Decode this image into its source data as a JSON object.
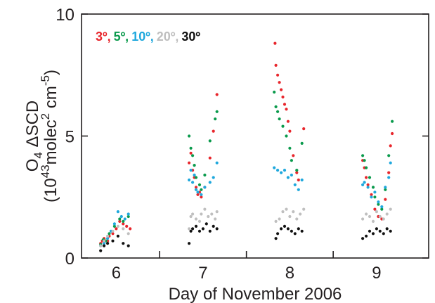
{
  "chart_data": {
    "type": "scatter",
    "title": "",
    "xlabel": "Day of November 2006",
    "ylabel_main": "O",
    "ylabel_sub": "4",
    "ylabel_rest": " ΔSCD",
    "ylabel_units": {
      "open": "(10",
      "exp": "43",
      "molec": "molec",
      "molec_exp": "2",
      "cm": " cm",
      "cm_exp": "-5",
      "close": ")"
    },
    "xlim": [
      5.6,
      9.6
    ],
    "ylim": [
      0,
      10
    ],
    "x_ticks": [
      6,
      7,
      8,
      9
    ],
    "y_ticks": [
      0,
      5,
      10
    ],
    "grid": false,
    "legend_position": "top-left",
    "legend": [
      {
        "label": "3º,",
        "color": "#e8262c"
      },
      {
        "label": "5º,",
        "color": "#0a9a4c"
      },
      {
        "label": "10º,",
        "color": "#1fa8dd"
      },
      {
        "label": "20º,",
        "color": "#bfbfbf"
      },
      {
        "label": "30º",
        "color": "#111111"
      }
    ],
    "series": [
      {
        "color": "#e8262c",
        "points": [
          [
            5.82,
            0.6
          ],
          [
            5.84,
            0.7
          ],
          [
            5.86,
            0.8
          ],
          [
            5.9,
            0.7
          ],
          [
            5.92,
            0.9
          ],
          [
            5.96,
            1.0
          ],
          [
            6.0,
            1.2
          ],
          [
            6.04,
            1.5
          ],
          [
            6.08,
            1.4
          ],
          [
            6.12,
            1.3
          ],
          [
            6.16,
            1.2
          ],
          [
            6.84,
            3.9
          ],
          [
            6.86,
            4.3
          ],
          [
            6.88,
            3.6
          ],
          [
            6.9,
            3.3
          ],
          [
            6.92,
            2.9
          ],
          [
            6.94,
            2.6
          ],
          [
            6.96,
            2.7
          ],
          [
            6.98,
            2.5
          ],
          [
            7.02,
            2.9
          ],
          [
            7.08,
            4.1
          ],
          [
            7.12,
            5.2
          ],
          [
            7.16,
            6.7
          ],
          [
            7.83,
            8.8
          ],
          [
            7.84,
            7.9
          ],
          [
            7.86,
            7.5
          ],
          [
            7.88,
            7.2
          ],
          [
            7.9,
            6.9
          ],
          [
            7.92,
            6.6
          ],
          [
            7.94,
            6.3
          ],
          [
            7.96,
            6.1
          ],
          [
            7.98,
            5.6
          ],
          [
            8.0,
            5.2
          ],
          [
            8.04,
            4.2
          ],
          [
            8.08,
            3.5
          ],
          [
            8.1,
            3.2
          ],
          [
            8.16,
            5.3
          ],
          [
            8.84,
            4.0
          ],
          [
            8.86,
            3.7
          ],
          [
            8.88,
            3.3
          ],
          [
            8.9,
            3.0
          ],
          [
            8.94,
            2.6
          ],
          [
            8.98,
            2.0
          ],
          [
            9.02,
            1.7
          ],
          [
            9.06,
            1.6
          ],
          [
            9.1,
            2.4
          ],
          [
            9.14,
            3.5
          ],
          [
            9.16,
            4.6
          ],
          [
            9.18,
            5.1
          ]
        ]
      },
      {
        "color": "#0a9a4c",
        "points": [
          [
            5.82,
            0.55
          ],
          [
            5.85,
            0.75
          ],
          [
            5.88,
            0.7
          ],
          [
            5.92,
            1.0
          ],
          [
            5.98,
            1.3
          ],
          [
            6.04,
            1.6
          ],
          [
            6.08,
            1.5
          ],
          [
            6.14,
            1.7
          ],
          [
            6.84,
            5.0
          ],
          [
            6.86,
            4.5
          ],
          [
            6.88,
            4.2
          ],
          [
            6.9,
            3.8
          ],
          [
            6.92,
            3.3
          ],
          [
            6.96,
            3.0
          ],
          [
            6.98,
            2.8
          ],
          [
            7.02,
            3.4
          ],
          [
            7.08,
            4.8
          ],
          [
            7.14,
            5.7
          ],
          [
            7.16,
            6.0
          ],
          [
            7.82,
            6.8
          ],
          [
            7.84,
            6.2
          ],
          [
            7.86,
            6.0
          ],
          [
            7.88,
            5.7
          ],
          [
            7.92,
            5.4
          ],
          [
            7.96,
            5.0
          ],
          [
            8.0,
            4.5
          ],
          [
            8.02,
            4.0
          ],
          [
            8.08,
            3.6
          ],
          [
            8.14,
            4.7
          ],
          [
            8.84,
            4.2
          ],
          [
            8.86,
            4.0
          ],
          [
            8.88,
            3.7
          ],
          [
            8.92,
            3.3
          ],
          [
            8.96,
            2.9
          ],
          [
            8.98,
            2.5
          ],
          [
            9.02,
            2.2
          ],
          [
            9.06,
            2.0
          ],
          [
            9.1,
            2.8
          ],
          [
            9.14,
            4.2
          ],
          [
            9.18,
            5.6
          ]
        ]
      },
      {
        "color": "#1fa8dd",
        "points": [
          [
            5.82,
            0.5
          ],
          [
            5.86,
            0.6
          ],
          [
            5.9,
            0.8
          ],
          [
            5.94,
            1.1
          ],
          [
            5.98,
            1.4
          ],
          [
            6.02,
            1.9
          ],
          [
            6.06,
            1.7
          ],
          [
            6.1,
            1.6
          ],
          [
            6.14,
            1.8
          ],
          [
            6.84,
            3.2
          ],
          [
            6.86,
            3.6
          ],
          [
            6.88,
            3.1
          ],
          [
            6.9,
            3.4
          ],
          [
            6.92,
            2.8
          ],
          [
            6.94,
            2.7
          ],
          [
            6.98,
            2.6
          ],
          [
            7.02,
            2.9
          ],
          [
            7.08,
            3.1
          ],
          [
            7.12,
            3.3
          ],
          [
            7.16,
            3.9
          ],
          [
            7.82,
            3.7
          ],
          [
            7.86,
            3.6
          ],
          [
            7.9,
            3.5
          ],
          [
            7.94,
            3.6
          ],
          [
            7.98,
            3.3
          ],
          [
            8.02,
            3.4
          ],
          [
            8.06,
            3.0
          ],
          [
            8.1,
            2.8
          ],
          [
            8.14,
            3.2
          ],
          [
            8.84,
            3.0
          ],
          [
            8.86,
            3.1
          ],
          [
            8.9,
            2.9
          ],
          [
            8.94,
            2.5
          ],
          [
            8.98,
            2.7
          ],
          [
            9.02,
            2.3
          ],
          [
            9.06,
            2.1
          ],
          [
            9.1,
            2.9
          ],
          [
            9.14,
            3.3
          ],
          [
            9.16,
            3.9
          ]
        ]
      },
      {
        "color": "#bfbfbf",
        "points": [
          [
            5.82,
            0.5
          ],
          [
            5.86,
            0.7
          ],
          [
            5.9,
            0.9
          ],
          [
            5.96,
            1.1
          ],
          [
            6.02,
            1.3
          ],
          [
            6.08,
            1.2
          ],
          [
            6.14,
            1.0
          ],
          [
            6.84,
            1.2
          ],
          [
            6.86,
            1.7
          ],
          [
            6.88,
            1.8
          ],
          [
            6.92,
            1.6
          ],
          [
            6.96,
            1.5
          ],
          [
            6.98,
            1.8
          ],
          [
            7.02,
            2.0
          ],
          [
            7.06,
            1.7
          ],
          [
            7.1,
            1.8
          ],
          [
            7.14,
            1.6
          ],
          [
            7.16,
            1.9
          ],
          [
            7.84,
            1.5
          ],
          [
            7.88,
            1.6
          ],
          [
            7.92,
            1.9
          ],
          [
            7.96,
            2.0
          ],
          [
            8.0,
            1.7
          ],
          [
            8.04,
            1.9
          ],
          [
            8.08,
            1.6
          ],
          [
            8.12,
            1.8
          ],
          [
            8.16,
            2.0
          ],
          [
            8.84,
            1.6
          ],
          [
            8.88,
            1.8
          ],
          [
            8.92,
            1.7
          ],
          [
            8.96,
            1.5
          ],
          [
            9.0,
            1.9
          ],
          [
            9.04,
            1.7
          ],
          [
            9.08,
            1.6
          ],
          [
            9.12,
            1.8
          ],
          [
            9.16,
            2.0
          ]
        ]
      },
      {
        "color": "#111111",
        "points": [
          [
            5.82,
            0.3
          ],
          [
            5.86,
            0.5
          ],
          [
            5.9,
            0.6
          ],
          [
            5.96,
            0.7
          ],
          [
            6.02,
            0.9
          ],
          [
            6.08,
            0.6
          ],
          [
            6.14,
            0.5
          ],
          [
            6.84,
            0.6
          ],
          [
            6.86,
            1.1
          ],
          [
            6.88,
            1.2
          ],
          [
            6.92,
            1.3
          ],
          [
            6.96,
            1.1
          ],
          [
            7.0,
            1.2
          ],
          [
            7.04,
            1.4
          ],
          [
            7.08,
            1.1
          ],
          [
            7.12,
            1.3
          ],
          [
            7.16,
            1.2
          ],
          [
            7.84,
            0.8
          ],
          [
            7.86,
            1.0
          ],
          [
            7.9,
            1.2
          ],
          [
            7.94,
            1.3
          ],
          [
            7.98,
            1.2
          ],
          [
            8.02,
            1.1
          ],
          [
            8.06,
            1.0
          ],
          [
            8.1,
            1.2
          ],
          [
            8.14,
            1.1
          ],
          [
            8.84,
            0.8
          ],
          [
            8.88,
            0.9
          ],
          [
            8.92,
            1.1
          ],
          [
            8.96,
            1.0
          ],
          [
            9.0,
            1.2
          ],
          [
            9.04,
            1.1
          ],
          [
            9.08,
            1.0
          ],
          [
            9.12,
            1.2
          ],
          [
            9.16,
            1.1
          ]
        ]
      }
    ]
  }
}
